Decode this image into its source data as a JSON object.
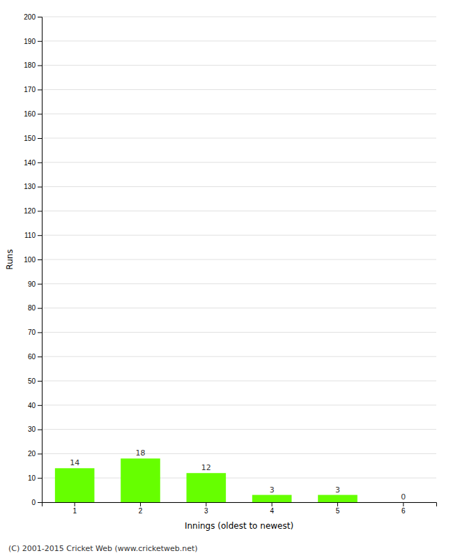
{
  "chart_data": {
    "type": "bar",
    "xlabel": "Innings (oldest to newest)",
    "ylabel": "Runs",
    "categories": [
      "1",
      "2",
      "3",
      "4",
      "5",
      "6"
    ],
    "values": [
      14,
      18,
      12,
      3,
      3,
      0
    ],
    "color": "#66ff00",
    "ylim": [
      0,
      200
    ],
    "yticks": [
      0,
      10,
      20,
      30,
      40,
      50,
      60,
      70,
      80,
      90,
      100,
      110,
      120,
      130,
      140,
      150,
      160,
      170,
      180,
      190,
      200
    ],
    "grid": true,
    "data_labels": true,
    "annotations": [
      "(C) 2001-2015 Cricket Web (www.cricketweb.net)"
    ]
  }
}
